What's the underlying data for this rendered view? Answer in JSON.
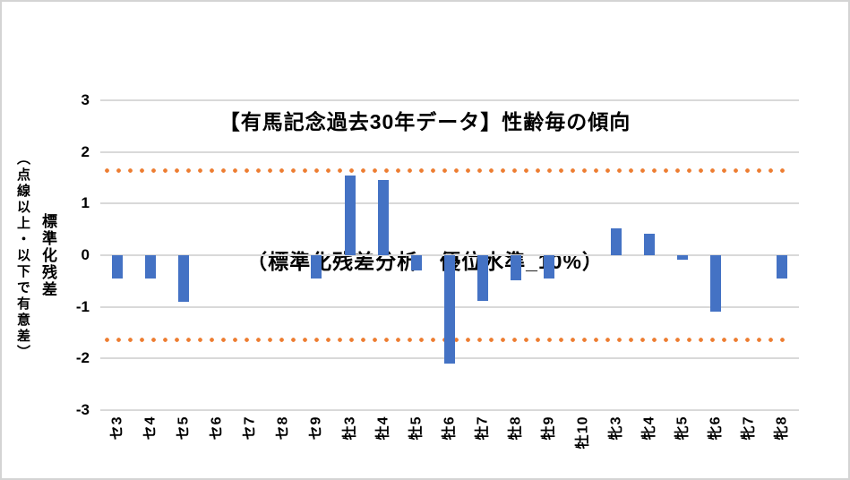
{
  "chart": {
    "title_line1": "【有馬記念過去30年データ】性齢毎の傾向",
    "title_line2": "（標準化残差分析　優位水準_10%）",
    "y_axis": {
      "title_main": "標準化残差",
      "title_sub": "（点線以上・以下で有意差）"
    }
  },
  "chart_data": {
    "type": "bar",
    "title": "【有馬記念過去30年データ】性齢毎の傾向（標準化残差分析　優位水準_10%）",
    "xlabel": "",
    "ylabel": "標準化残差（点線以上・以下で有意差）",
    "categories": [
      "セ3",
      "セ4",
      "セ5",
      "セ6",
      "セ7",
      "セ8",
      "セ9",
      "牡3",
      "牡4",
      "牡5",
      "牡6",
      "牡7",
      "牡8",
      "牡9",
      "牡10",
      "牝3",
      "牝4",
      "牝5",
      "牝6",
      "牝7",
      "牝8"
    ],
    "values": [
      -0.45,
      -0.45,
      -0.9,
      0,
      0,
      0,
      -0.45,
      1.55,
      1.45,
      -0.3,
      -2.1,
      -0.88,
      -0.48,
      -0.45,
      0,
      0.52,
      0.42,
      -0.08,
      -1.1,
      0,
      -0.45
    ],
    "ylim": [
      -3,
      3
    ],
    "y_ticks": [
      3,
      2,
      1,
      0,
      -1,
      -2,
      -3
    ],
    "significance_lines": [
      1.645,
      -1.645
    ],
    "grid": "horizontal",
    "legend_position": "none",
    "colors": {
      "bar": "#4472C4",
      "significance_dotted": "#ED7D31",
      "gridline": "#D9D9D9",
      "text": "#000000",
      "border": "#D4D4D4"
    }
  }
}
